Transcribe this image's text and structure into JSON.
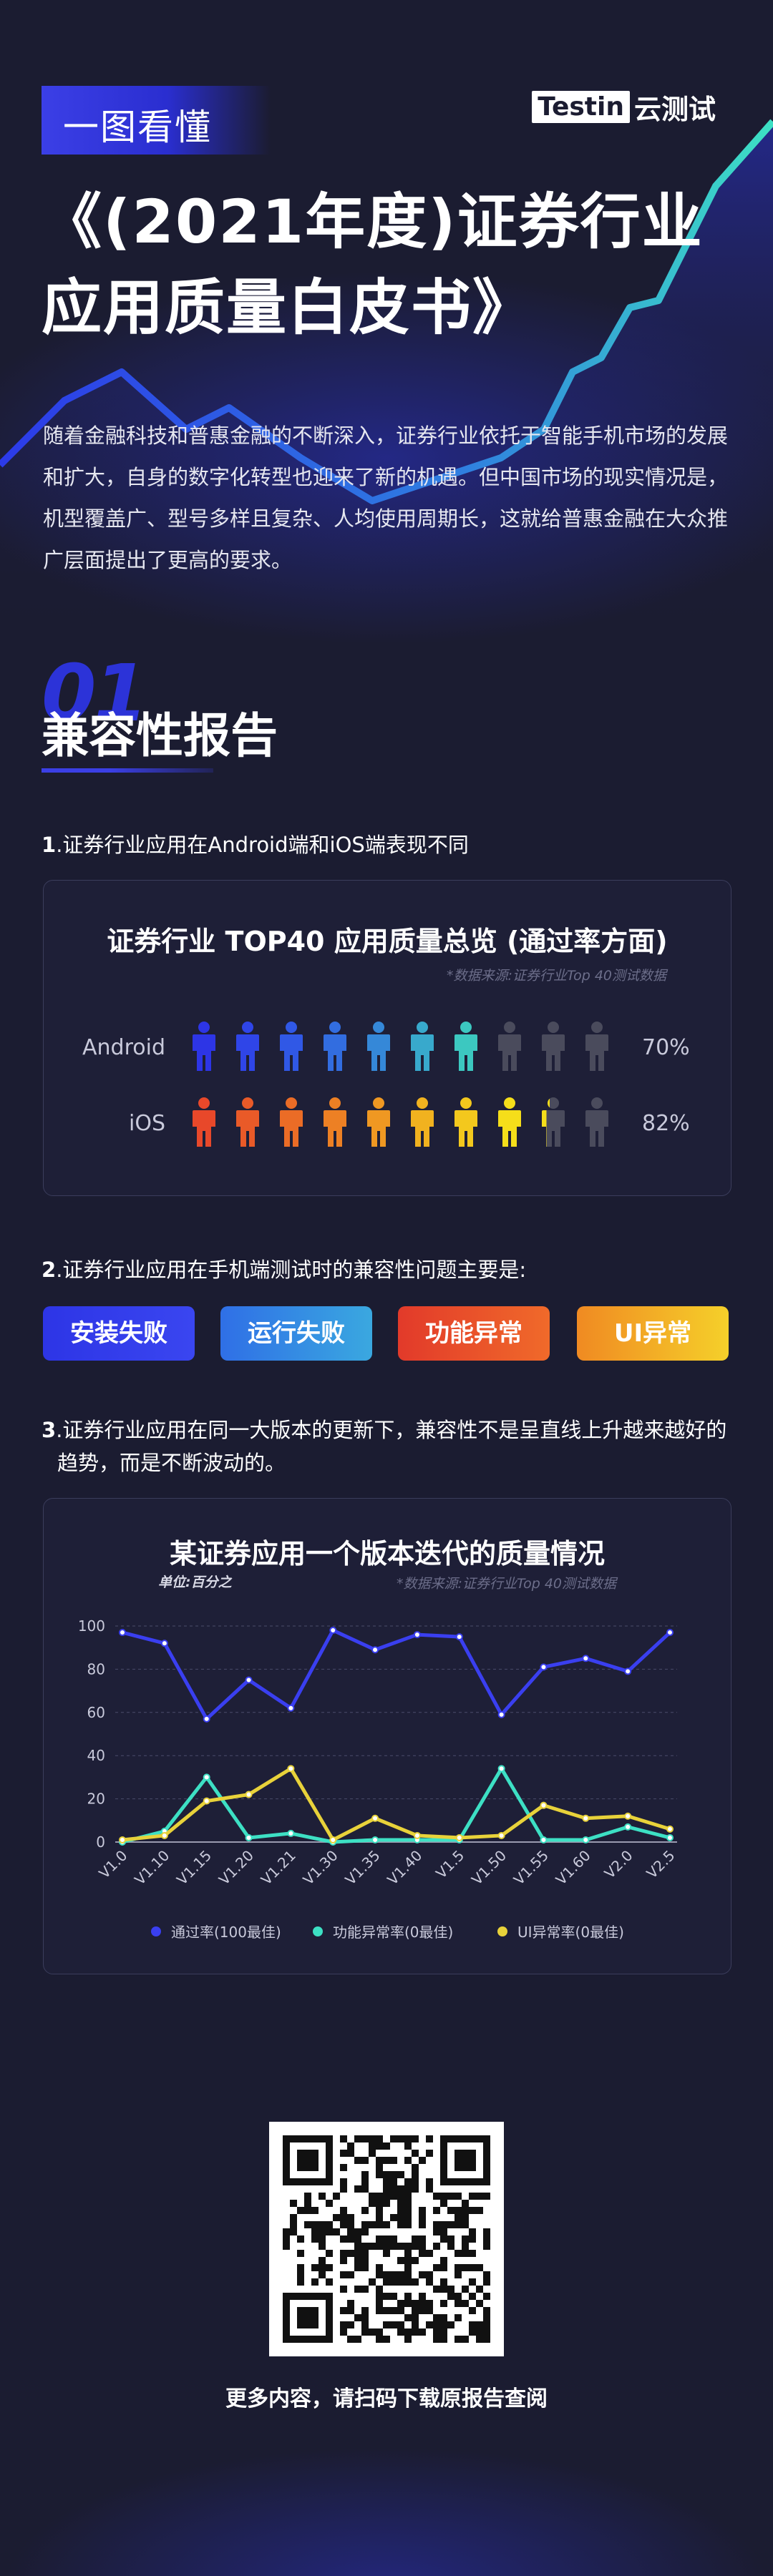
{
  "header": {
    "tag": "一图看懂",
    "brand_box": "Testin",
    "brand_text": "云测试",
    "title_line1": "《(2021年度)证券行业",
    "title_line2": "应用质量白皮书》",
    "intro": "随着金融科技和普惠金融的不断深入，证券行业依托于智能手机市场的发展和扩大，自身的数字化转型也迎来了新的机遇。但中国市场的现实情况是，机型覆盖广、型号多样且复杂、人均使用周期长，这就给普惠金融在大众推广层面提出了更高的要求。"
  },
  "section": {
    "number": "01",
    "title": "兼容性报告"
  },
  "q1": {
    "num": "1",
    "text": ".证券行业应用在Android端和iOS端表现不同"
  },
  "pass_chart": {
    "title": "证券行业 TOP40 应用质量总览 (通过率方面)",
    "source": "*数据来源:证券行业Top 40测试数据",
    "rows": [
      {
        "label": "Android",
        "percent": "70%",
        "value": 0.7
      },
      {
        "label": "iOS",
        "percent": "82%",
        "value": 0.82
      }
    ],
    "colors": {
      "android": [
        "#2d35e6",
        "#2f45e8",
        "#3058e6",
        "#326de0",
        "#3588d8",
        "#38a9cc",
        "#3cc8c0"
      ],
      "ios": [
        "#e8482a",
        "#e95a28",
        "#eb6c26",
        "#ed8024",
        "#ef9822",
        "#f1b21f",
        "#f3c81d",
        "#f5de1a"
      ],
      "empty": "#4a4b5c"
    }
  },
  "q2": {
    "num": "2",
    "text": ".证券行业应用在手机端测试时的兼容性问题主要是:"
  },
  "issues": [
    {
      "label": "安装失败"
    },
    {
      "label": "运行失败"
    },
    {
      "label": "功能异常"
    },
    {
      "label": "UI异常"
    }
  ],
  "q3": {
    "num": "3",
    "text_line1": ".证券行业应用在同一大版本的更新下，兼容性不是呈直线上升越来越好的",
    "text_line2": "趋势，而是不断波动的。"
  },
  "chart_data": {
    "type": "line",
    "title": "某证券应用一个版本迭代的质量情况",
    "unit": "单位:百分之",
    "source": "*数据来源:证券行业Top 40测试数据",
    "x": [
      "V1.0",
      "V1.10",
      "V1.15",
      "V1.20",
      "V1.21",
      "V1.30",
      "V1.35",
      "V1.40",
      "V1.5",
      "V1.50",
      "V1.55",
      "V1.60",
      "V2.0",
      "V2.5"
    ],
    "ylim": [
      0,
      100
    ],
    "yticks": [
      0,
      20,
      40,
      60,
      80,
      100
    ],
    "grid": true,
    "legend_position": "bottom",
    "series": [
      {
        "name": "通过率(100最佳)",
        "color": "#3a3ff0",
        "values": [
          97,
          92,
          57,
          75,
          62,
          98,
          89,
          96,
          95,
          59,
          81,
          85,
          79,
          97
        ]
      },
      {
        "name": "功能异常率(0最佳)",
        "color": "#3de0c4",
        "values": [
          0,
          5,
          30,
          2,
          4,
          0,
          1,
          1,
          1,
          34,
          1,
          1,
          7,
          2
        ]
      },
      {
        "name": "UI异常率(0最佳)",
        "color": "#e8d23a",
        "values": [
          1,
          3,
          19,
          22,
          34,
          1,
          11,
          3,
          2,
          3,
          17,
          11,
          12,
          6
        ]
      }
    ]
  },
  "footer": {
    "text": "更多内容，请扫码下载原报告查阅"
  }
}
